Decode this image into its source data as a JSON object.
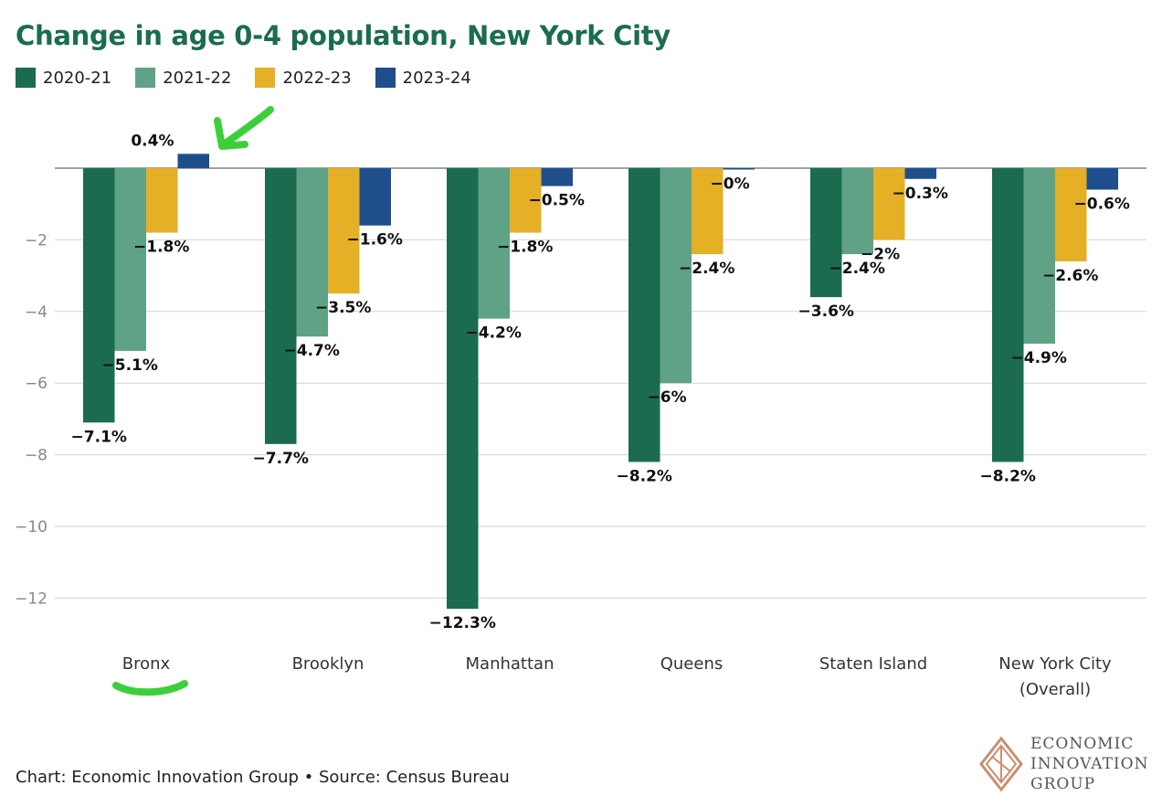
{
  "chart_data": {
    "type": "bar",
    "title": "Change in age 0-4 population, New York City",
    "categories": [
      "Bronx",
      "Brooklyn",
      "Manhattan",
      "Queens",
      "Staten Island",
      "New York City (Overall)"
    ],
    "series": [
      {
        "name": "2020-21",
        "color": "#1b6b4f",
        "values": [
          -7.1,
          -7.7,
          -12.3,
          -8.2,
          -3.6,
          -8.2
        ],
        "labels": [
          "−7.1%",
          "−7.7%",
          "−12.3%",
          "−8.2%",
          "−3.6%",
          "−8.2%"
        ]
      },
      {
        "name": "2021-22",
        "color": "#5fa286",
        "values": [
          -5.1,
          -4.7,
          -4.2,
          -6.0,
          -2.4,
          -4.9
        ],
        "labels": [
          "−5.1%",
          "−4.7%",
          "−4.2%",
          "−6%",
          "−2.4%",
          "−4.9%"
        ]
      },
      {
        "name": "2022-23",
        "color": "#e5af26",
        "values": [
          -1.8,
          -3.5,
          -1.8,
          -2.4,
          -2.0,
          -2.6
        ],
        "labels": [
          "−1.8%",
          "−3.5%",
          "−1.8%",
          "−2.4%",
          "−2%",
          "−2.6%"
        ]
      },
      {
        "name": "2023-24",
        "color": "#1f4e8c",
        "values": [
          0.4,
          -1.6,
          -0.5,
          -0.02,
          -0.3,
          -0.6
        ],
        "labels": [
          "0.4%",
          "−1.6%",
          "−0.5%",
          "−0%",
          "−0.3%",
          "−0.6%"
        ]
      }
    ],
    "yticks": [
      0,
      -2,
      -4,
      -6,
      -8,
      -10,
      -12
    ],
    "ytick_labels": [
      "",
      "−2",
      "−4",
      "−6",
      "−8",
      "−10",
      "−12"
    ],
    "ylim": [
      -12.3,
      0.4
    ],
    "grid": true,
    "legend": "top-left"
  },
  "annotations": {
    "arrow_color": "#3dcf3a",
    "underline_color": "#3dcf3a"
  },
  "footer": "Chart: Economic Innovation Group • Source: Census Bureau",
  "logo": {
    "lines": [
      "ECONOMIC",
      "INNOVATION",
      "GROUP"
    ],
    "color": "#c98f6e"
  }
}
